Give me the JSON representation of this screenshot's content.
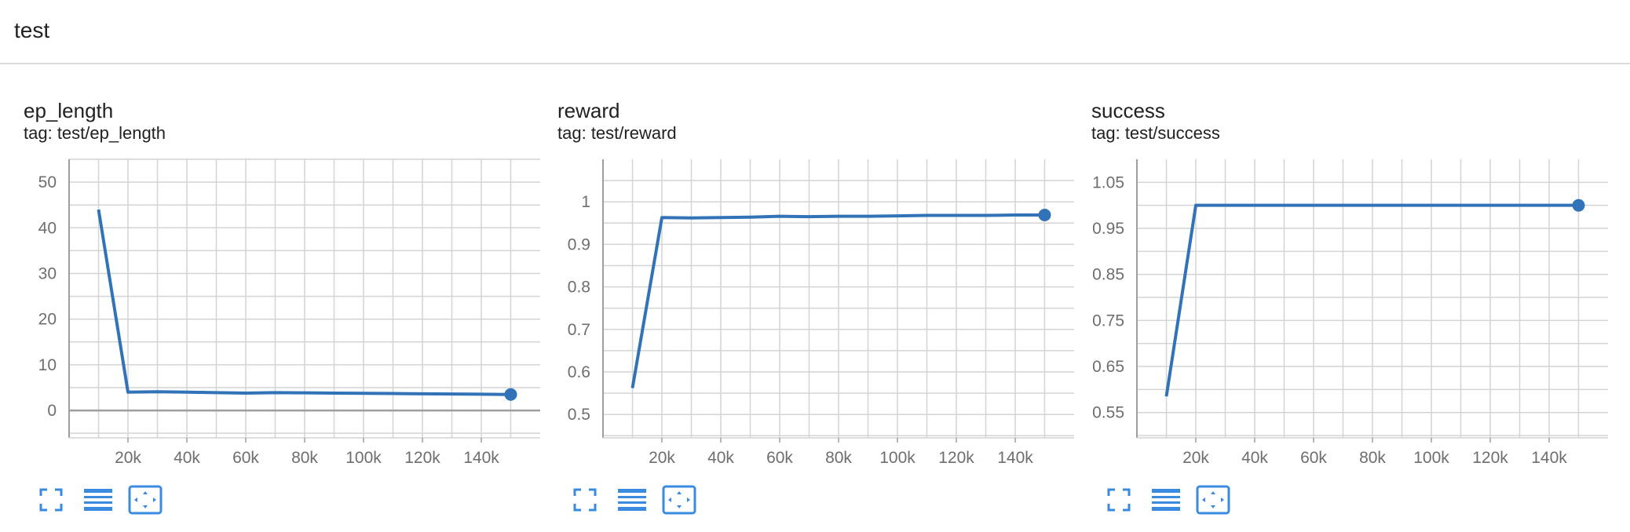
{
  "group": {
    "title": "test"
  },
  "colors": {
    "line": "#3273b8",
    "grid": "#d4d4d4",
    "axis": "#9e9e9e",
    "tick_text": "#6e6e6e",
    "control": "#3a8ae0"
  },
  "cards": [
    {
      "title": "ep_length",
      "tag_prefix": "tag: ",
      "tag": "test/ep_length"
    },
    {
      "title": "reward",
      "tag_prefix": "tag: ",
      "tag": "test/reward"
    },
    {
      "title": "success",
      "tag_prefix": "tag: ",
      "tag": "test/success"
    }
  ],
  "controls": {
    "icons": [
      "expand-icon",
      "data-selection-icon",
      "fit-domain-icon"
    ]
  },
  "chart_data": [
    {
      "type": "line",
      "title": "ep_length",
      "x": [
        10000,
        20000,
        30000,
        40000,
        50000,
        60000,
        70000,
        80000,
        90000,
        100000,
        110000,
        120000,
        130000,
        140000,
        150000
      ],
      "y": [
        44,
        4.0,
        4.1,
        4.0,
        3.9,
        3.8,
        3.9,
        3.85,
        3.8,
        3.75,
        3.7,
        3.65,
        3.6,
        3.55,
        3.5
      ],
      "xlim": [
        0,
        160000
      ],
      "ylim": [
        -6,
        55
      ],
      "xticks": [
        20000,
        40000,
        60000,
        80000,
        100000,
        120000,
        140000
      ],
      "xtick_labels": [
        "20k",
        "40k",
        "60k",
        "80k",
        "100k",
        "120k",
        "140k"
      ],
      "yticks": [
        0,
        10,
        20,
        30,
        40,
        50
      ],
      "ytick_labels": [
        "0",
        "10",
        "20",
        "30",
        "40",
        "50"
      ],
      "zero_line": true,
      "grid": true
    },
    {
      "type": "line",
      "title": "reward",
      "x": [
        10000,
        20000,
        30000,
        40000,
        50000,
        60000,
        70000,
        80000,
        90000,
        100000,
        110000,
        120000,
        130000,
        140000,
        150000
      ],
      "y": [
        0.562,
        0.963,
        0.962,
        0.963,
        0.964,
        0.966,
        0.965,
        0.966,
        0.966,
        0.967,
        0.968,
        0.968,
        0.968,
        0.969,
        0.969
      ],
      "xlim": [
        0,
        160000
      ],
      "ylim": [
        0.445,
        1.1
      ],
      "xticks": [
        20000,
        40000,
        60000,
        80000,
        100000,
        120000,
        140000
      ],
      "xtick_labels": [
        "20k",
        "40k",
        "60k",
        "80k",
        "100k",
        "120k",
        "140k"
      ],
      "yticks": [
        0.5,
        0.6,
        0.7,
        0.8,
        0.9,
        1.0
      ],
      "ytick_labels": [
        "0.5",
        "0.6",
        "0.7",
        "0.8",
        "0.9",
        "1"
      ],
      "zero_line": false,
      "grid": true
    },
    {
      "type": "line",
      "title": "success",
      "x": [
        10000,
        20000,
        30000,
        40000,
        50000,
        60000,
        70000,
        80000,
        90000,
        100000,
        110000,
        120000,
        130000,
        140000,
        150000
      ],
      "y": [
        0.585,
        1,
        1,
        1,
        1,
        1,
        1,
        1,
        1,
        1,
        1,
        1,
        1,
        1,
        1
      ],
      "xlim": [
        0,
        160000
      ],
      "ylim": [
        0.495,
        1.1
      ],
      "xticks": [
        20000,
        40000,
        60000,
        80000,
        100000,
        120000,
        140000
      ],
      "xtick_labels": [
        "20k",
        "40k",
        "60k",
        "80k",
        "100k",
        "120k",
        "140k"
      ],
      "yticks": [
        0.55,
        0.65,
        0.75,
        0.85,
        0.95,
        1.05
      ],
      "ytick_labels": [
        "0.55",
        "0.65",
        "0.75",
        "0.85",
        "0.95",
        "1.05"
      ],
      "zero_line": false,
      "grid": true
    }
  ]
}
